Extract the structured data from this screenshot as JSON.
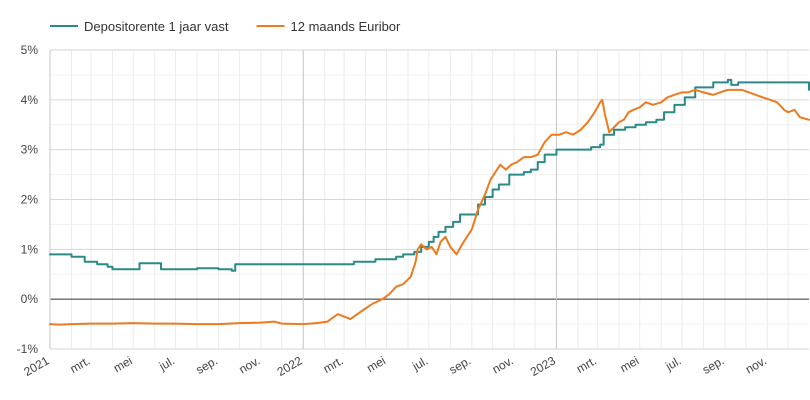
{
  "chart_data": {
    "type": "line",
    "title": "",
    "xlabel": "",
    "ylabel": "",
    "ylim": [
      -1,
      5
    ],
    "xlim": [
      "2021-01-01",
      "2023-12-31"
    ],
    "grid": true,
    "legend_position": "top-left",
    "y_ticks": [
      {
        "value": 5,
        "label": "5%"
      },
      {
        "value": 4,
        "label": "4%"
      },
      {
        "value": 3,
        "label": "3%"
      },
      {
        "value": 2,
        "label": "2%"
      },
      {
        "value": 1,
        "label": "1%"
      },
      {
        "value": 0,
        "label": "0%"
      },
      {
        "value": -1,
        "label": "-1%"
      }
    ],
    "x_ticks": [
      {
        "date": "2021-01-01",
        "label": "2021",
        "major": true
      },
      {
        "date": "2021-03-01",
        "label": "mrt.",
        "major": false
      },
      {
        "date": "2021-05-01",
        "label": "mei",
        "major": false
      },
      {
        "date": "2021-07-01",
        "label": "jul.",
        "major": false
      },
      {
        "date": "2021-09-01",
        "label": "sep.",
        "major": false
      },
      {
        "date": "2021-11-01",
        "label": "nov.",
        "major": false
      },
      {
        "date": "2022-01-01",
        "label": "2022",
        "major": true
      },
      {
        "date": "2022-03-01",
        "label": "mrt.",
        "major": false
      },
      {
        "date": "2022-05-01",
        "label": "mei",
        "major": false
      },
      {
        "date": "2022-07-01",
        "label": "jul.",
        "major": false
      },
      {
        "date": "2022-09-01",
        "label": "sep.",
        "major": false
      },
      {
        "date": "2022-11-01",
        "label": "nov.",
        "major": false
      },
      {
        "date": "2023-01-01",
        "label": "2023",
        "major": true
      },
      {
        "date": "2023-03-01",
        "label": "mrt.",
        "major": false
      },
      {
        "date": "2023-05-01",
        "label": "mei",
        "major": false
      },
      {
        "date": "2023-07-01",
        "label": "jul.",
        "major": false
      },
      {
        "date": "2023-09-01",
        "label": "sep.",
        "major": false
      },
      {
        "date": "2023-11-01",
        "label": "nov.",
        "major": false
      }
    ],
    "series": [
      {
        "name": "Depositorente 1 jaar vast",
        "color": "#2a8a86",
        "step": true,
        "points": [
          [
            "2021-01-01",
            0.9
          ],
          [
            "2021-02-01",
            0.85
          ],
          [
            "2021-02-20",
            0.75
          ],
          [
            "2021-03-10",
            0.7
          ],
          [
            "2021-03-25",
            0.65
          ],
          [
            "2021-04-01",
            0.6
          ],
          [
            "2021-05-10",
            0.72
          ],
          [
            "2021-06-10",
            0.6
          ],
          [
            "2021-07-15",
            0.6
          ],
          [
            "2021-08-01",
            0.62
          ],
          [
            "2021-09-01",
            0.6
          ],
          [
            "2021-09-20",
            0.57
          ],
          [
            "2021-09-25",
            0.7
          ],
          [
            "2022-01-01",
            0.7
          ],
          [
            "2022-03-01",
            0.7
          ],
          [
            "2022-03-15",
            0.75
          ],
          [
            "2022-04-15",
            0.8
          ],
          [
            "2022-05-15",
            0.85
          ],
          [
            "2022-05-25",
            0.9
          ],
          [
            "2022-06-10",
            0.95
          ],
          [
            "2022-06-20",
            1.05
          ],
          [
            "2022-07-01",
            1.15
          ],
          [
            "2022-07-08",
            1.25
          ],
          [
            "2022-07-15",
            1.35
          ],
          [
            "2022-07-25",
            1.45
          ],
          [
            "2022-08-05",
            1.55
          ],
          [
            "2022-08-15",
            1.7
          ],
          [
            "2022-09-05",
            1.7
          ],
          [
            "2022-09-10",
            1.9
          ],
          [
            "2022-09-20",
            2.05
          ],
          [
            "2022-10-01",
            2.2
          ],
          [
            "2022-10-10",
            2.3
          ],
          [
            "2022-10-25",
            2.5
          ],
          [
            "2022-11-15",
            2.55
          ],
          [
            "2022-11-25",
            2.6
          ],
          [
            "2022-12-05",
            2.75
          ],
          [
            "2022-12-15",
            2.9
          ],
          [
            "2023-01-01",
            3.0
          ],
          [
            "2023-02-01",
            3.0
          ],
          [
            "2023-02-20",
            3.05
          ],
          [
            "2023-03-05",
            3.1
          ],
          [
            "2023-03-10",
            3.3
          ],
          [
            "2023-03-25",
            3.4
          ],
          [
            "2023-04-10",
            3.45
          ],
          [
            "2023-04-25",
            3.5
          ],
          [
            "2023-05-10",
            3.55
          ],
          [
            "2023-05-25",
            3.6
          ],
          [
            "2023-06-05",
            3.75
          ],
          [
            "2023-06-20",
            3.9
          ],
          [
            "2023-07-05",
            4.05
          ],
          [
            "2023-07-20",
            4.25
          ],
          [
            "2023-08-10",
            4.25
          ],
          [
            "2023-08-15",
            4.35
          ],
          [
            "2023-09-05",
            4.4
          ],
          [
            "2023-09-10",
            4.3
          ],
          [
            "2023-09-20",
            4.35
          ],
          [
            "2023-12-28",
            4.35
          ],
          [
            "2023-12-31",
            4.2
          ]
        ]
      },
      {
        "name": "12 maands Euribor",
        "color": "#ee7a1f",
        "step": false,
        "points": [
          [
            "2021-01-01",
            -0.5
          ],
          [
            "2021-01-15",
            -0.51
          ],
          [
            "2021-02-01",
            -0.5
          ],
          [
            "2021-03-01",
            -0.49
          ],
          [
            "2021-04-01",
            -0.49
          ],
          [
            "2021-05-01",
            -0.48
          ],
          [
            "2021-06-01",
            -0.49
          ],
          [
            "2021-07-01",
            -0.49
          ],
          [
            "2021-08-01",
            -0.5
          ],
          [
            "2021-09-01",
            -0.5
          ],
          [
            "2021-10-01",
            -0.48
          ],
          [
            "2021-11-01",
            -0.47
          ],
          [
            "2021-11-20",
            -0.45
          ],
          [
            "2021-12-01",
            -0.49
          ],
          [
            "2022-01-01",
            -0.5
          ],
          [
            "2022-01-20",
            -0.48
          ],
          [
            "2022-02-05",
            -0.45
          ],
          [
            "2022-02-20",
            -0.3
          ],
          [
            "2022-03-01",
            -0.35
          ],
          [
            "2022-03-10",
            -0.4
          ],
          [
            "2022-03-25",
            -0.25
          ],
          [
            "2022-04-10",
            -0.1
          ],
          [
            "2022-04-25",
            0.0
          ],
          [
            "2022-05-05",
            0.1
          ],
          [
            "2022-05-15",
            0.25
          ],
          [
            "2022-05-25",
            0.3
          ],
          [
            "2022-06-05",
            0.45
          ],
          [
            "2022-06-12",
            0.75
          ],
          [
            "2022-06-15",
            1.0
          ],
          [
            "2022-06-20",
            1.1
          ],
          [
            "2022-06-28",
            1.0
          ],
          [
            "2022-07-05",
            1.05
          ],
          [
            "2022-07-12",
            0.9
          ],
          [
            "2022-07-18",
            1.15
          ],
          [
            "2022-07-25",
            1.25
          ],
          [
            "2022-08-01",
            1.05
          ],
          [
            "2022-08-10",
            0.9
          ],
          [
            "2022-08-18",
            1.1
          ],
          [
            "2022-08-25",
            1.25
          ],
          [
            "2022-09-01",
            1.4
          ],
          [
            "2022-09-10",
            1.8
          ],
          [
            "2022-09-20",
            2.1
          ],
          [
            "2022-09-28",
            2.4
          ],
          [
            "2022-10-05",
            2.55
          ],
          [
            "2022-10-12",
            2.7
          ],
          [
            "2022-10-20",
            2.6
          ],
          [
            "2022-10-28",
            2.7
          ],
          [
            "2022-11-05",
            2.75
          ],
          [
            "2022-11-15",
            2.85
          ],
          [
            "2022-11-25",
            2.85
          ],
          [
            "2022-12-05",
            2.9
          ],
          [
            "2022-12-15",
            3.15
          ],
          [
            "2022-12-25",
            3.3
          ],
          [
            "2023-01-05",
            3.3
          ],
          [
            "2023-01-15",
            3.35
          ],
          [
            "2023-01-25",
            3.3
          ],
          [
            "2023-02-05",
            3.4
          ],
          [
            "2023-02-15",
            3.55
          ],
          [
            "2023-02-25",
            3.75
          ],
          [
            "2023-03-05",
            3.95
          ],
          [
            "2023-03-08",
            4.0
          ],
          [
            "2023-03-12",
            3.7
          ],
          [
            "2023-03-18",
            3.35
          ],
          [
            "2023-03-25",
            3.45
          ],
          [
            "2023-04-01",
            3.55
          ],
          [
            "2023-04-08",
            3.6
          ],
          [
            "2023-04-15",
            3.75
          ],
          [
            "2023-04-22",
            3.8
          ],
          [
            "2023-05-01",
            3.85
          ],
          [
            "2023-05-10",
            3.95
          ],
          [
            "2023-05-20",
            3.9
          ],
          [
            "2023-06-01",
            3.95
          ],
          [
            "2023-06-10",
            4.05
          ],
          [
            "2023-06-20",
            4.1
          ],
          [
            "2023-07-01",
            4.15
          ],
          [
            "2023-07-10",
            4.15
          ],
          [
            "2023-07-20",
            4.2
          ],
          [
            "2023-08-01",
            4.15
          ],
          [
            "2023-08-15",
            4.1
          ],
          [
            "2023-08-25",
            4.15
          ],
          [
            "2023-09-05",
            4.2
          ],
          [
            "2023-09-15",
            4.2
          ],
          [
            "2023-09-25",
            4.2
          ],
          [
            "2023-10-05",
            4.15
          ],
          [
            "2023-10-15",
            4.1
          ],
          [
            "2023-10-25",
            4.05
          ],
          [
            "2023-11-05",
            4.0
          ],
          [
            "2023-11-15",
            3.95
          ],
          [
            "2023-11-25",
            3.8
          ],
          [
            "2023-12-01",
            3.75
          ],
          [
            "2023-12-10",
            3.8
          ],
          [
            "2023-12-18",
            3.65
          ],
          [
            "2023-12-31",
            3.6
          ]
        ]
      }
    ]
  }
}
